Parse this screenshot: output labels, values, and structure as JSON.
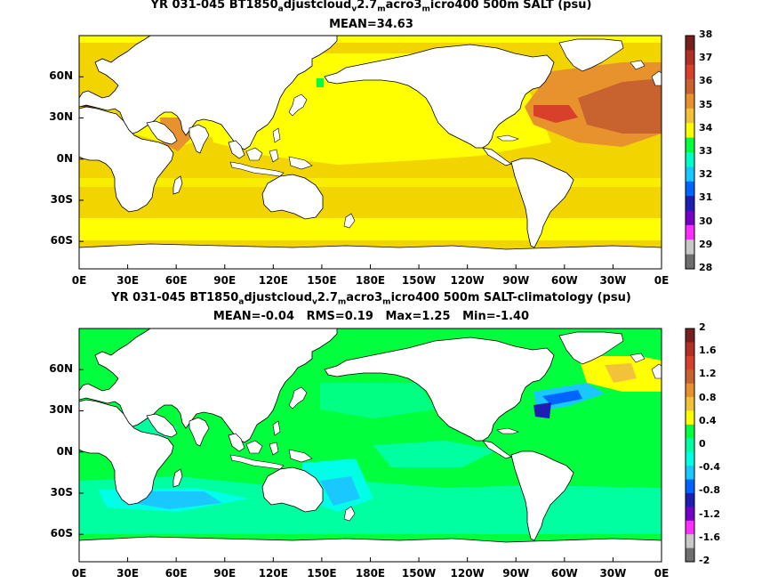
{
  "top_panel": {
    "title_parts": [
      "YR 031-045 BT1850",
      "a",
      "djustcloud",
      "v",
      "2.7",
      "m",
      "acro3",
      "m",
      "icro400 500m SALT (psu)"
    ],
    "stats": "MEAN=34.63",
    "colorbar": {
      "labels": [
        "38",
        "37",
        "36",
        "35",
        "34",
        "33",
        "32",
        "31",
        "30",
        "29",
        "28"
      ],
      "colors": [
        "#7a1f1f",
        "#b03026",
        "#d8402c",
        "#c8622e",
        "#e8922e",
        "#f2c23a",
        "#ffff00",
        "#00ff3c",
        "#00ffc8",
        "#19c8ff",
        "#0064ff",
        "#1e1eb4",
        "#7300c8",
        "#ff2dff",
        "#c8c8c8",
        "#6e6e6e"
      ]
    }
  },
  "bottom_panel": {
    "title_parts": [
      "YR 031-045 BT1850",
      "a",
      "djustcloud",
      "v",
      "2.7",
      "m",
      "acro3",
      "m",
      "icro400 500m SALT-climatology (psu)"
    ],
    "stats": "MEAN=-0.04   RMS=0.19   Max=1.25   Min=-1.40",
    "colorbar": {
      "labels": [
        "2",
        "1.6",
        "1.2",
        "0.8",
        "0.4",
        "0",
        "-0.4",
        "-0.8",
        "-1.2",
        "-1.6",
        "-2"
      ],
      "colors": [
        "#7a1f1f",
        "#b03026",
        "#d8402c",
        "#c8622e",
        "#e8922e",
        "#f2c23a",
        "#ffff00",
        "#00ff3c",
        "#00ffa0",
        "#00ffe6",
        "#19c8ff",
        "#0064ff",
        "#1e1eb4",
        "#7300c8",
        "#ff2dff",
        "#c8c8c8",
        "#6e6e6e"
      ]
    }
  },
  "axes": {
    "x_ticks": [
      "0E",
      "30E",
      "60E",
      "90E",
      "120E",
      "150E",
      "180E",
      "150W",
      "120W",
      "90W",
      "60W",
      "30W",
      "0E"
    ],
    "y_ticks": [
      "60N",
      "30N",
      "0N",
      "30S",
      "60S"
    ]
  },
  "colors": {
    "land": "#ffffff",
    "coast": "#000000",
    "top_ocean_main": "#f2d400",
    "top_ocean_pacific": "#ffff00",
    "top_north_atlantic": "#e8922e",
    "top_high_atlantic": "#c8622e",
    "top_gulf": "#d8402c",
    "top_med": "#7a1f1f",
    "bottom_ocean": "#00ff3c",
    "bottom_ocean_alt": "#00ffa0",
    "bottom_cyan": "#00ffe6",
    "bottom_blue": "#19c8ff",
    "bottom_dark_blue": "#0064ff",
    "bottom_yellow": "#ffff00",
    "bottom_orange": "#f2c23a"
  }
}
